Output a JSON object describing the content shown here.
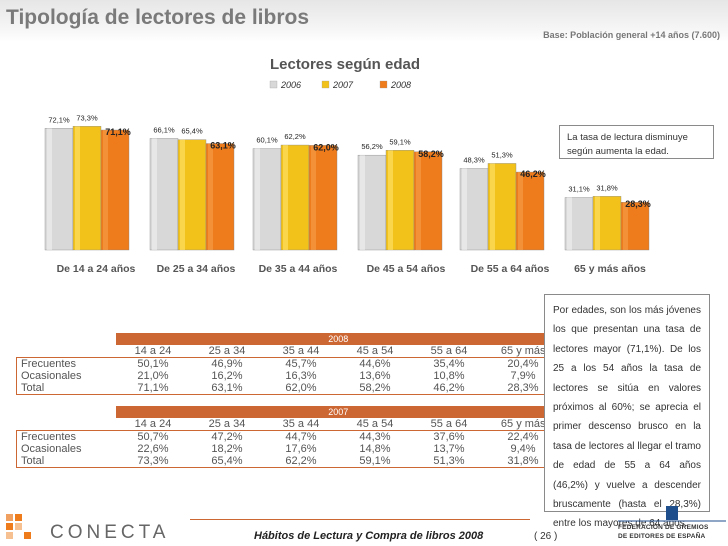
{
  "page": {
    "title": "Tipología de lectores de libros",
    "base": "Base: Población general +14 años (7.600)"
  },
  "chart_data": {
    "type": "bar",
    "title": "Lectores según edad",
    "categories": [
      "De 14 a 24 años",
      "De 25 a 34 años",
      "De 35 a 44 años",
      "De 45 a 54 años",
      "De 55 a 64 años",
      "65 y más años"
    ],
    "series": [
      {
        "name": "2006",
        "values": [
          72.1,
          66.1,
          60.1,
          56.2,
          48.3,
          31.1
        ],
        "labels": [
          "72,1%",
          "66,1%",
          "60,1%",
          "56,2%",
          "48,3%",
          "31,1%"
        ],
        "color": "#d8d8d8"
      },
      {
        "name": "2007",
        "values": [
          73.3,
          65.4,
          62.2,
          59.1,
          51.3,
          31.8
        ],
        "labels": [
          "73,3%",
          "65,4%",
          "62,2%",
          "59,1%",
          "51,3%",
          "31,8%"
        ],
        "color": "#f2c21b"
      },
      {
        "name": "2008",
        "values": [
          71.1,
          63.1,
          62.0,
          58.2,
          46.2,
          28.3
        ],
        "labels": [
          "71,1%",
          "63,1%",
          "62,0%",
          "58,2%",
          "46,2%",
          "28,3%"
        ],
        "color": "#ee7b1c"
      }
    ],
    "ylim": [
      0,
      80
    ],
    "legend": "top-center"
  },
  "callouts": {
    "top": "La tasa de lectura disminuye según aumenta la edad.",
    "bottom": "Por edades, son los más jóvenes los que presentan una tasa de lectores mayor (71,1%). De los 25 a los 54 años la tasa de lectores se sitúa en valores próximos al 60%; se aprecia el primer descenso brusco en la tasa de lectores al llegar el tramo de edad de 55 a 64 años (46,2%) y vuelve a descender bruscamente (hasta el 28,3%) entre los mayores de 64 años."
  },
  "tables": {
    "headers": [
      "14 a 24",
      "25 a 34",
      "35 a 44",
      "45 a 54",
      "55 a 64",
      "65 y más"
    ],
    "t2008": {
      "year": "2008",
      "rows": [
        {
          "label": "Frecuentes",
          "values": [
            "50,1%",
            "46,9%",
            "45,7%",
            "44,6%",
            "35,4%",
            "20,4%"
          ]
        },
        {
          "label": "Ocasionales",
          "values": [
            "21,0%",
            "16,2%",
            "16,3%",
            "13,6%",
            "10,8%",
            "7,9%"
          ]
        },
        {
          "label": "Total",
          "values": [
            "71,1%",
            "63,1%",
            "62,0%",
            "58,2%",
            "46,2%",
            "28,3%"
          ]
        }
      ]
    },
    "t2007": {
      "year": "2007",
      "rows": [
        {
          "label": "Frecuentes",
          "values": [
            "50,7%",
            "47,2%",
            "44,7%",
            "44,3%",
            "37,6%",
            "22,4%"
          ]
        },
        {
          "label": "Ocasionales",
          "values": [
            "22,6%",
            "18,2%",
            "17,6%",
            "14,8%",
            "13,7%",
            "9,4%"
          ]
        },
        {
          "label": "Total",
          "values": [
            "73,3%",
            "65,4%",
            "62,2%",
            "59,1%",
            "51,3%",
            "31,8%"
          ]
        }
      ]
    }
  },
  "footer": {
    "text": "Hábitos de Lectura y Compra de libros 2008",
    "page": "( 26 )",
    "logo_left": "CONECTA",
    "logo_right_line1": "FEDERACIÓN DE GREMIOS",
    "logo_right_line2": "DE EDITORES DE ESPAÑA"
  }
}
